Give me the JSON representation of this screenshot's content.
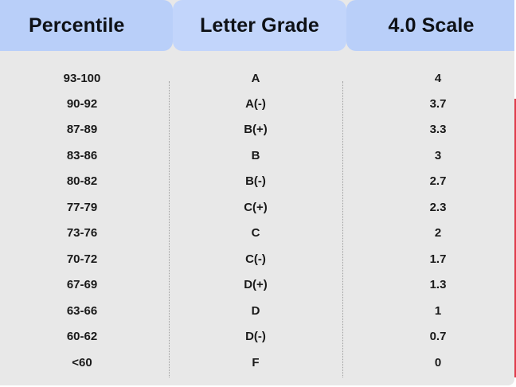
{
  "header": {
    "percentile": "Percentile",
    "letter_grade": "Letter Grade",
    "scale": "4.0 Scale"
  },
  "rows": [
    {
      "percentile": "93-100",
      "letter": "A",
      "scale": "4"
    },
    {
      "percentile": "90-92",
      "letter": "A(-)",
      "scale": "3.7"
    },
    {
      "percentile": "87-89",
      "letter": "B(+)",
      "scale": "3.3"
    },
    {
      "percentile": "83-86",
      "letter": "B",
      "scale": "3"
    },
    {
      "percentile": "80-82",
      "letter": "B(-)",
      "scale": "2.7"
    },
    {
      "percentile": "77-79",
      "letter": "C(+)",
      "scale": "2.3"
    },
    {
      "percentile": "73-76",
      "letter": "C",
      "scale": "2"
    },
    {
      "percentile": "70-72",
      "letter": "C(-)",
      "scale": "1.7"
    },
    {
      "percentile": "67-69",
      "letter": "D(+)",
      "scale": "1.3"
    },
    {
      "percentile": "63-66",
      "letter": "D",
      "scale": "1"
    },
    {
      "percentile": "60-62",
      "letter": "D(-)",
      "scale": "0.7"
    },
    {
      "percentile": "<60",
      "letter": "F",
      "scale": "0"
    }
  ],
  "colors": {
    "header_bg": "#b9cff9",
    "body_bg": "#e8e8e8",
    "text": "#1a1a1a"
  }
}
